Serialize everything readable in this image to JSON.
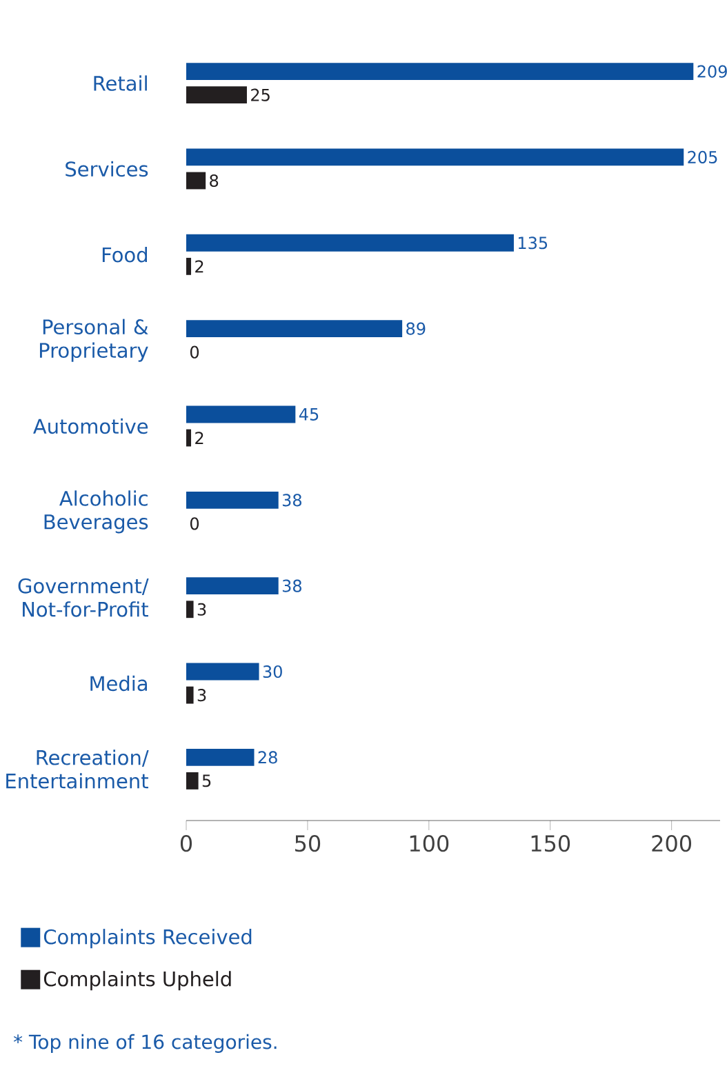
{
  "chart_data": {
    "type": "bar",
    "orientation": "horizontal",
    "categories": [
      "Retail",
      "Services",
      "Food",
      "Personal & Proprietary",
      "Automotive",
      "Alcoholic Beverages",
      "Government/ Not-for-Profit",
      "Media",
      "Recreation/ Entertainment"
    ],
    "series": [
      {
        "name": "Complaints Received",
        "color": "#0b4f9c",
        "values": [
          209,
          205,
          135,
          89,
          45,
          38,
          38,
          30,
          28
        ]
      },
      {
        "name": "Complaints Upheld",
        "color": "#231f20",
        "values": [
          25,
          8,
          2,
          0,
          2,
          0,
          3,
          3,
          5
        ]
      }
    ],
    "xlim": [
      0,
      220
    ],
    "xticks": [
      0,
      50,
      100,
      150,
      200
    ],
    "data_labels": true,
    "grid": false,
    "legend": "bottom left",
    "annotations": [
      "* Top nine of 16 categories."
    ]
  }
}
